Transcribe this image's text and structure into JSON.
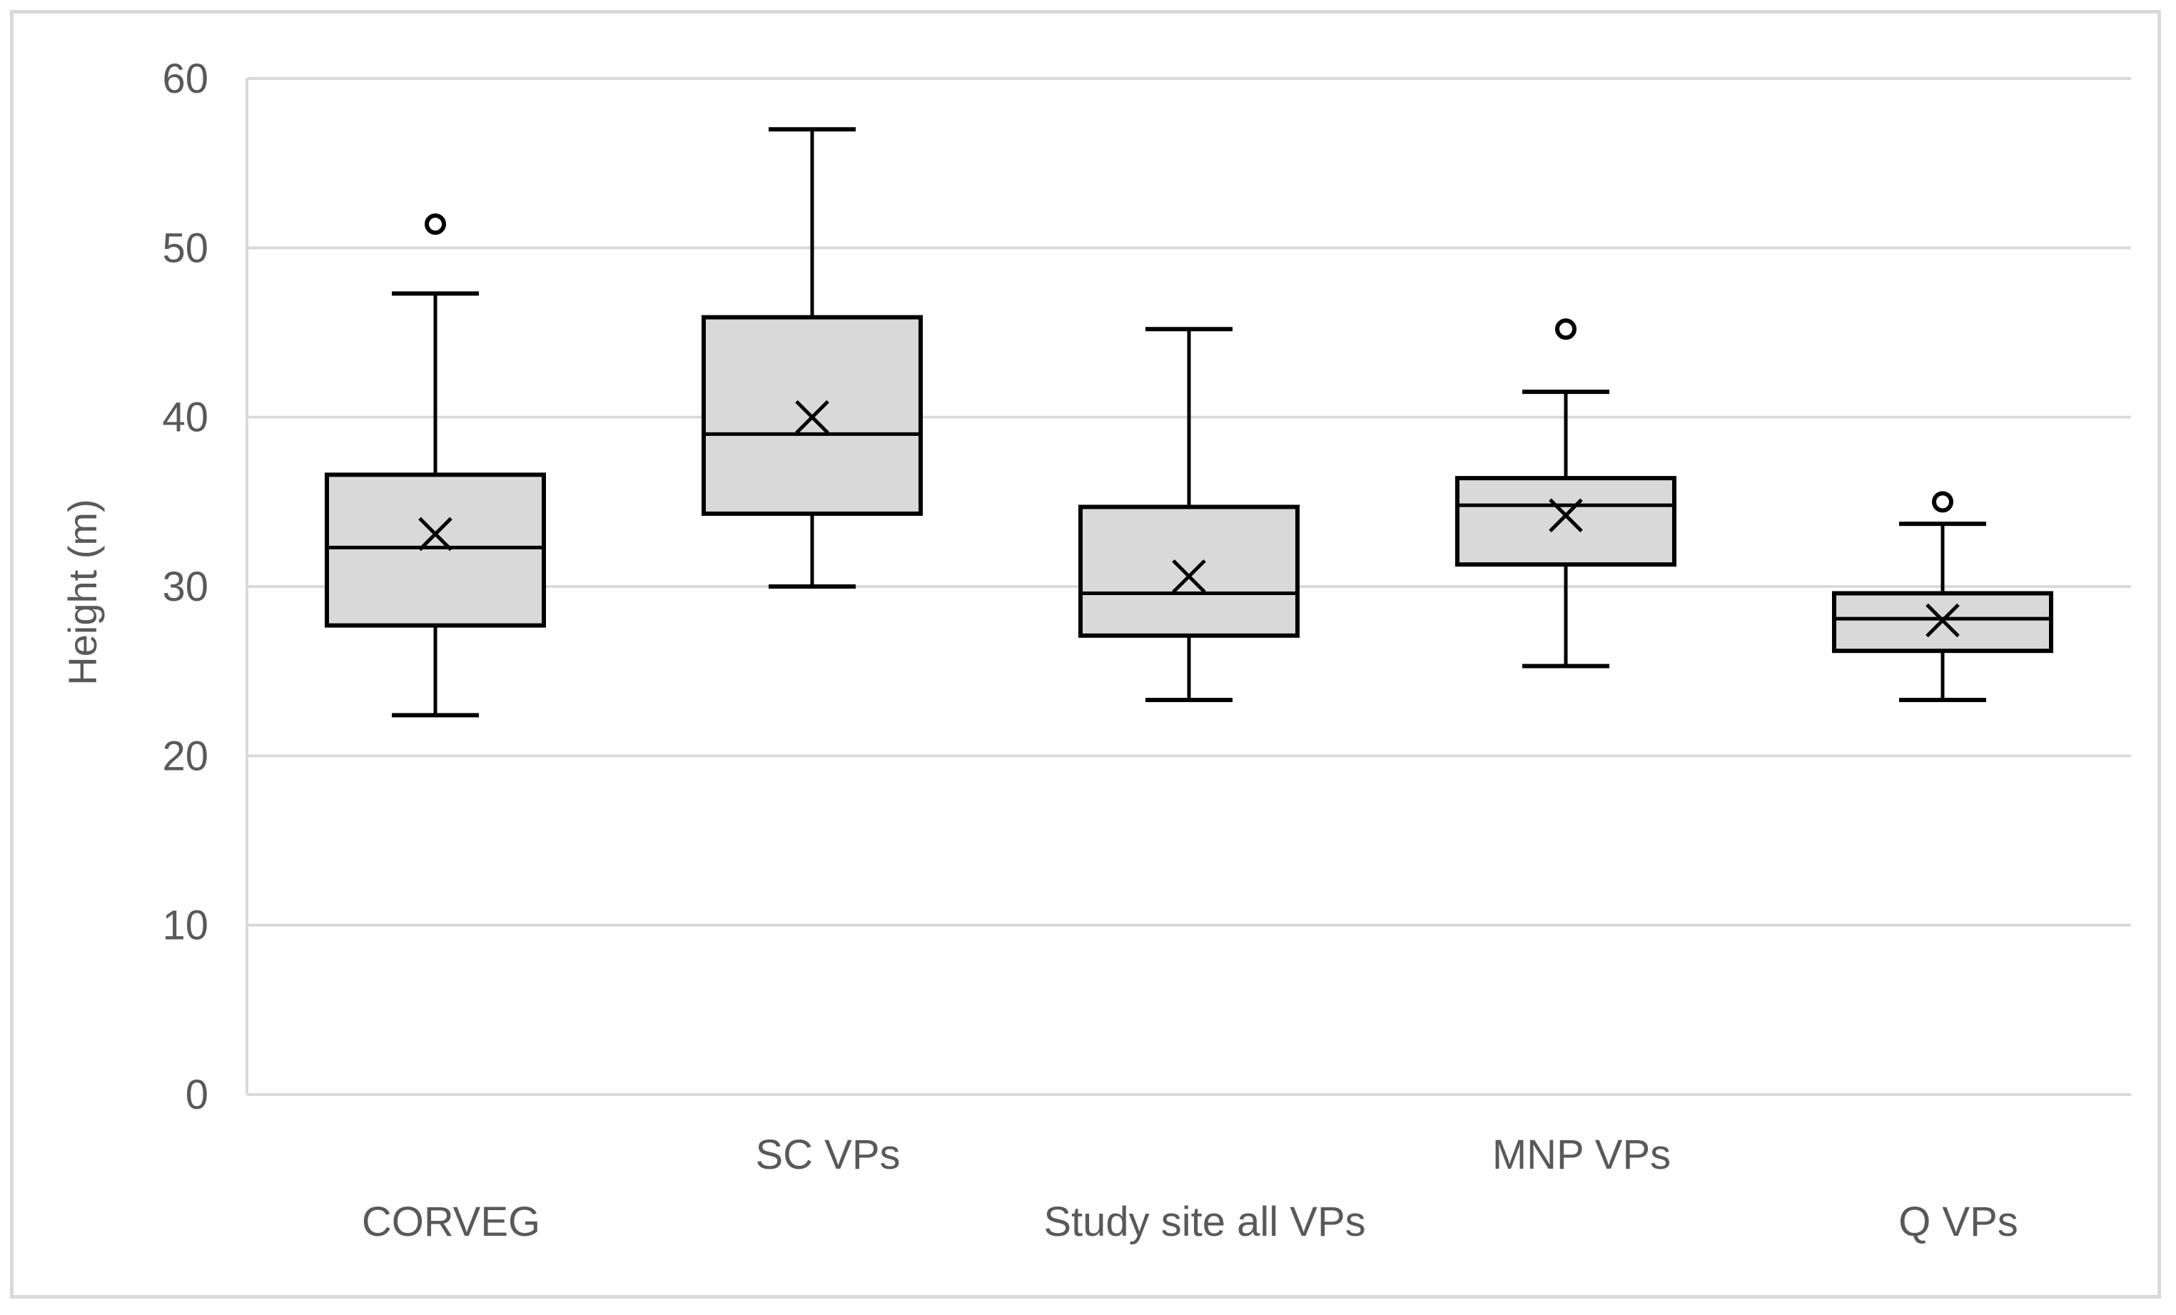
{
  "chart_data": {
    "type": "boxplot",
    "title": "",
    "xlabel": "",
    "ylabel": "Height (m)",
    "ylim": [
      0,
      60
    ],
    "yticks": [
      0,
      10,
      20,
      30,
      40,
      50,
      60
    ],
    "grid": true,
    "colors": {
      "box_fill": "#d9d9d9",
      "stroke": "#000000",
      "gridline": "#d9d9d9",
      "axis_text": "#595959"
    },
    "categories": [
      "CORVEG",
      "SC VPs",
      "Study site all VPs",
      "MNP VPs",
      "Q VPs"
    ],
    "label_rows": [
      "lower",
      "upper",
      "lower",
      "upper",
      "lower"
    ],
    "boxes": [
      {
        "name": "CORVEG",
        "min": 22.4,
        "q1": 27.7,
        "median": 32.3,
        "q3": 36.6,
        "max": 47.3,
        "mean": 33.1,
        "outliers": [
          51.4
        ]
      },
      {
        "name": "SC VPs",
        "min": 30.0,
        "q1": 34.3,
        "median": 39.0,
        "q3": 45.9,
        "max": 57.0,
        "mean": 40.0,
        "outliers": []
      },
      {
        "name": "Study site all VPs",
        "min": 23.3,
        "q1": 27.1,
        "median": 29.6,
        "q3": 34.7,
        "max": 45.2,
        "mean": 30.6,
        "outliers": []
      },
      {
        "name": "MNP VPs",
        "min": 25.3,
        "q1": 31.3,
        "median": 34.8,
        "q3": 36.4,
        "max": 41.5,
        "mean": 34.2,
        "outliers": [
          45.2
        ]
      },
      {
        "name": "Q VPs",
        "min": 23.3,
        "q1": 26.2,
        "median": 28.1,
        "q3": 29.6,
        "max": 33.7,
        "mean": 28.0,
        "outliers": [
          35.0
        ]
      }
    ]
  }
}
